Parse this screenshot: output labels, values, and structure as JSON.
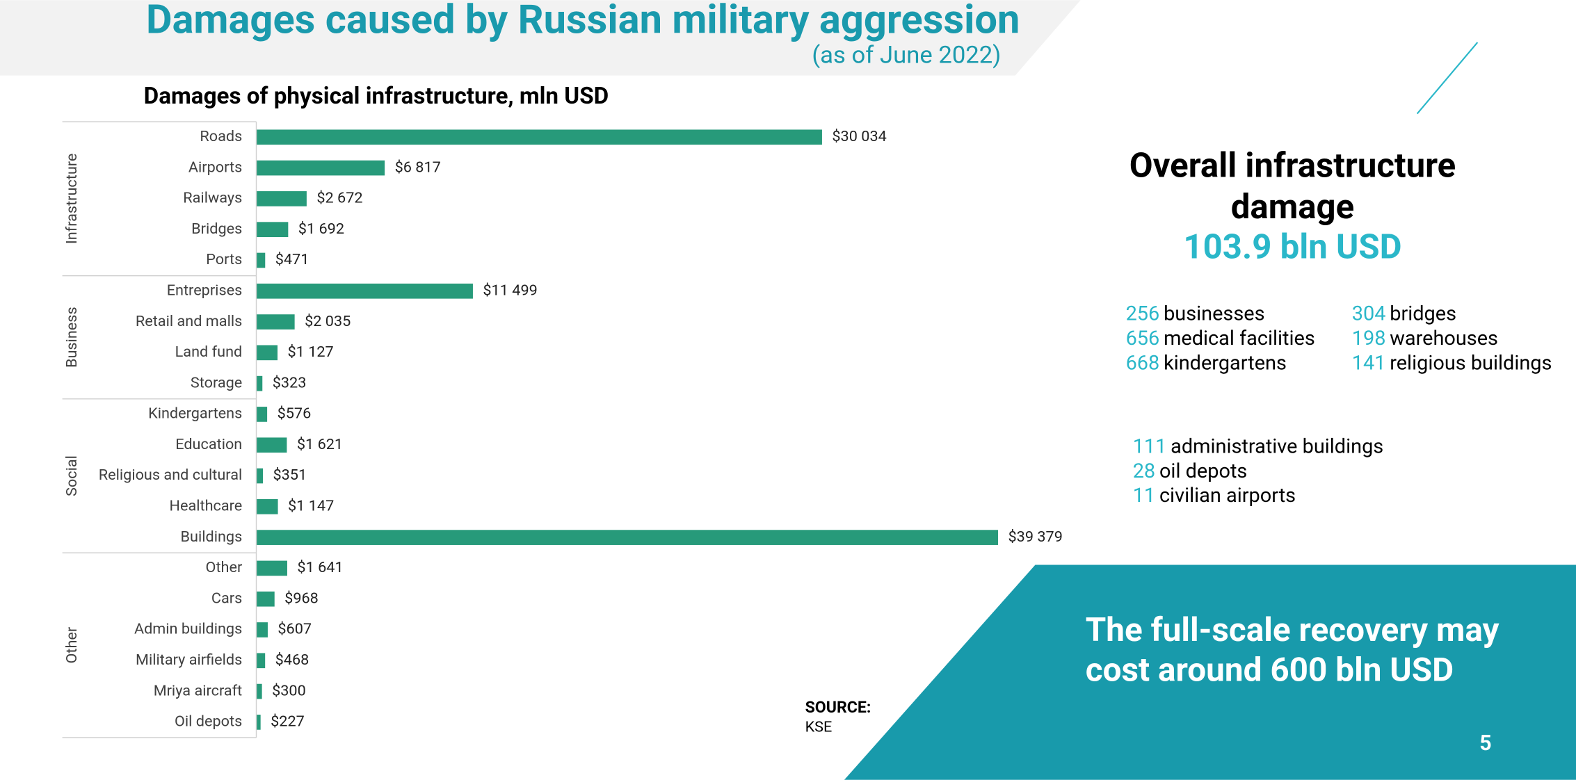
{
  "header": {
    "title": "Damages caused by Russian military aggression",
    "subtitle": "(as of June 2022)"
  },
  "chart_data": {
    "type": "bar",
    "title": "Damages of physical infrastructure, mln USD",
    "color": "#279a7a",
    "groups": [
      {
        "name": "Infrastructure",
        "categories": [
          "Roads",
          "Airports",
          "Railways",
          "Bridges",
          "Ports"
        ],
        "values": [
          30034,
          6817,
          2672,
          1692,
          471
        ],
        "value_labels": [
          "$30 034",
          "$6 817",
          "$2 672",
          "$1 692",
          "$471"
        ]
      },
      {
        "name": "Business",
        "categories": [
          "Entreprises",
          "Retail and malls",
          "Land fund",
          "Storage"
        ],
        "values": [
          11499,
          2035,
          1127,
          323
        ],
        "value_labels": [
          "$11 499",
          "$2 035",
          "$1 127",
          "$323"
        ]
      },
      {
        "name": "Social",
        "categories": [
          "Kindergartens",
          "Education",
          "Religious and cultural",
          "Healthcare",
          "Buildings"
        ],
        "values": [
          576,
          1621,
          351,
          1147,
          39379
        ],
        "value_labels": [
          "$576",
          "$1 621",
          "$351",
          "$1 147",
          "$39 379"
        ]
      },
      {
        "name": "Other",
        "categories": [
          "Other",
          "Cars",
          "Admin buildings",
          "Military airfields",
          "Mriya aircraft",
          "Oil depots"
        ],
        "values": [
          1641,
          968,
          607,
          468,
          300,
          227
        ],
        "value_labels": [
          "$1 641",
          "$968",
          "$607",
          "$468",
          "$300",
          "$227"
        ]
      }
    ]
  },
  "overall": {
    "title_lines": [
      "Overall infrastructure",
      "damage"
    ],
    "total": "103.9 bln USD"
  },
  "stats": [
    [
      {
        "count": "256",
        "label": "businesses"
      },
      {
        "count": "656",
        "label": "medical facilities"
      },
      {
        "count": "668",
        "label": "kindergartens"
      }
    ],
    [
      {
        "count": "304",
        "label": "bridges"
      },
      {
        "count": "198",
        "label": "warehouses"
      },
      {
        "count": "141",
        "label": "religious buildings"
      }
    ],
    [
      {
        "count": "111",
        "label": "administrative buildings"
      },
      {
        "count": "28",
        "label": "oil depots"
      },
      {
        "count": "11",
        "label": "civilian airports"
      }
    ]
  ],
  "source": {
    "label": "SOURCE:",
    "text": "KSE"
  },
  "recovery": {
    "lines": [
      "The full-scale recovery may",
      "cost around 600 bln USD"
    ]
  },
  "page_number": "5"
}
